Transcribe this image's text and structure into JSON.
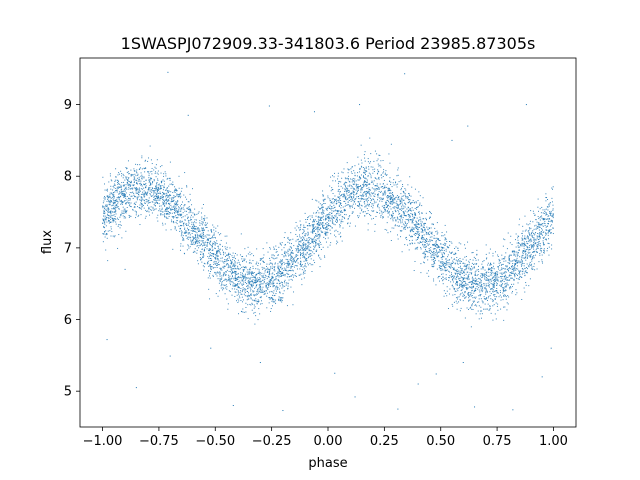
{
  "chart_data": {
    "type": "scatter",
    "title": "1SWASPJ072909.33-341803.6 Period 23985.87305s",
    "xlabel": "phase",
    "ylabel": "flux",
    "xlim": [
      -1.1,
      1.1
    ],
    "ylim": [
      4.5,
      9.65
    ],
    "xticks": [
      -1.0,
      -0.75,
      -0.5,
      -0.25,
      0.0,
      0.25,
      0.5,
      0.75,
      1.0
    ],
    "xtick_labels": [
      "−1.00",
      "−0.75",
      "−0.50",
      "−0.25",
      "0.00",
      "0.25",
      "0.50",
      "0.75",
      "1.00"
    ],
    "yticks": [
      5,
      6,
      7,
      8,
      9
    ],
    "ytick_labels": [
      "5",
      "6",
      "7",
      "8",
      "9"
    ],
    "grid": false,
    "marker_color": "#1f77b4",
    "series": [
      {
        "model": "sinusoid",
        "mean_flux": 7.15,
        "amplitude": 0.67,
        "peak_phase": 0.18,
        "period_in_phase": 1.0,
        "scatter_sigma": 0.2,
        "phase_range": [
          -1.0,
          1.0
        ],
        "point_count": 6000
      }
    ],
    "outliers": [
      {
        "x": -0.71,
        "y": 9.45
      },
      {
        "x": 0.34,
        "y": 9.43
      },
      {
        "x": -0.26,
        "y": 8.98
      },
      {
        "x": 0.14,
        "y": 9.0
      },
      {
        "x": 0.88,
        "y": 9.0
      },
      {
        "x": -0.06,
        "y": 8.9
      },
      {
        "x": -0.62,
        "y": 8.85
      },
      {
        "x": 0.62,
        "y": 8.7
      },
      {
        "x": -0.98,
        "y": 5.72
      },
      {
        "x": -0.85,
        "y": 5.05
      },
      {
        "x": -0.7,
        "y": 5.49
      },
      {
        "x": -0.42,
        "y": 4.8
      },
      {
        "x": -0.3,
        "y": 5.4
      },
      {
        "x": -0.2,
        "y": 4.73
      },
      {
        "x": 0.03,
        "y": 5.25
      },
      {
        "x": 0.12,
        "y": 4.92
      },
      {
        "x": 0.31,
        "y": 4.75
      },
      {
        "x": 0.48,
        "y": 5.24
      },
      {
        "x": 0.6,
        "y": 5.4
      },
      {
        "x": 0.65,
        "y": 4.78
      },
      {
        "x": 0.82,
        "y": 4.74
      },
      {
        "x": 0.95,
        "y": 5.2
      },
      {
        "x": 0.99,
        "y": 5.6
      },
      {
        "x": -0.52,
        "y": 5.6
      },
      {
        "x": 0.4,
        "y": 5.1
      },
      {
        "x": -0.9,
        "y": 6.7
      },
      {
        "x": 0.55,
        "y": 8.5
      }
    ]
  }
}
